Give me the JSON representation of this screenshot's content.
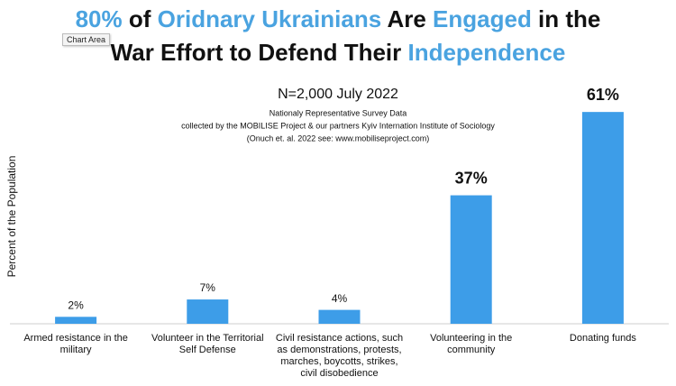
{
  "chart_data": {
    "type": "bar",
    "title_lines": [
      [
        {
          "text": "80%",
          "color": "#4aa3e0"
        },
        {
          "text": " of ",
          "color": "#111111"
        },
        {
          "text": "Oridnary Ukrainians",
          "color": "#4aa3e0"
        },
        {
          "text": " Are ",
          "color": "#111111"
        },
        {
          "text": "Engaged",
          "color": "#4aa3e0"
        },
        {
          "text": " in the",
          "color": "#111111"
        }
      ],
      [
        {
          "text": "War Effort to Defend Their ",
          "color": "#111111"
        },
        {
          "text": "Independence",
          "color": "#4aa3e0"
        }
      ]
    ],
    "tooltip": "Chart Area",
    "subtitle": "N=2,000 July 2022",
    "notes": [
      "Nationaly Representative Survey Data",
      "collected by the MOBILISE Project & our partners Kyiv Internation Institute of Sociology",
      "(Onuch et. al. 2022 see: www.mobiliseproject.com)"
    ],
    "y_label": "Percent of the Population",
    "categories": [
      "Armed resistance in the military",
      "Volunteer in the Territorial Self Defense",
      "Civil resistance actions, such as demonstrations, protests, marches, boycotts, strikes, civil disobedience",
      "Volunteering in the community",
      "Donating funds"
    ],
    "values": [
      2,
      7,
      4,
      37,
      61
    ],
    "value_labels": [
      "2%",
      "7%",
      "4%",
      "37%",
      "61%"
    ],
    "color": "#3d9de8",
    "ylim": [
      0,
      70
    ]
  }
}
